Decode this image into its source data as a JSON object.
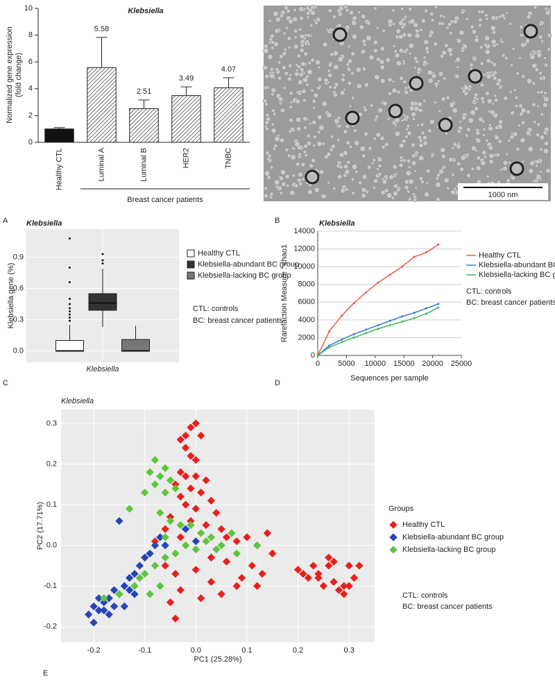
{
  "panel_labels": [
    "A",
    "B",
    "C",
    "D",
    "E"
  ],
  "image": {
    "scale_bar": "1000 nm"
  },
  "chart_data": [
    {
      "type": "bar",
      "title": "Klebsiella",
      "y_label": [
        "Normalized gene expression",
        "(fold change)"
      ],
      "categories": [
        "Healthy CTL",
        "Luminal A",
        "Luminal B",
        "HER2",
        "TNBC"
      ],
      "values": [
        1.0,
        5.58,
        2.51,
        3.49,
        4.07
      ],
      "errors": [
        0.1,
        2.25,
        0.65,
        0.65,
        0.75
      ],
      "value_labels": [
        null,
        "5.58",
        "2.51",
        "3.49",
        "4.07"
      ],
      "fills": [
        "solid",
        "hatch",
        "hatch",
        "hatch",
        "hatch"
      ],
      "color": "#111111",
      "ylim": [
        0,
        10
      ],
      "yticks": [
        0,
        2,
        4,
        6,
        8,
        10
      ],
      "group_label": "Breast cancer patients"
    },
    {
      "type": "box",
      "title": "Klebsiella",
      "y_label": "Klebsiella gene (%)",
      "categories": [
        "Klebsiella"
      ],
      "ylim": [
        -0.11,
        1.17
      ],
      "yticks": [
        {
          "value": 0,
          "label": "0.0"
        },
        0.3,
        0.6,
        0.9
      ],
      "grid": true,
      "series": [
        {
          "name": "Healthy CTL",
          "color": "#ffffff",
          "min": 0,
          "q1": 0,
          "median": 0,
          "q3": 0.1,
          "max": 0.25,
          "outliers": [
            0.29,
            0.32,
            0.35,
            0.38,
            0.41,
            0.45,
            0.5,
            0.66,
            0.8,
            1.08
          ]
        },
        {
          "name": "Klebsiella-abundant BC group",
          "color": "#333333",
          "min": 0.23,
          "q1": 0.39,
          "median": 0.46,
          "q3": 0.55,
          "max": 0.79,
          "outliers": [
            0.84,
            0.87,
            0.93
          ]
        },
        {
          "name": "Klebsiella-lacking BC group",
          "color": "#777777",
          "min": 0,
          "q1": 0,
          "median": 0,
          "q3": 0.11,
          "max": 0.24,
          "outliers": []
        }
      ],
      "notes": [
        "CTL: controls",
        "BC: breast cancer patients"
      ]
    },
    {
      "type": "line",
      "title": "Klebsiella",
      "y_label": "Rarefaction Measure : chao1",
      "x_label": "Sequences per sample",
      "x": [
        0,
        2000,
        4200,
        6300,
        8400,
        10500,
        12600,
        14700,
        16800,
        18900,
        21000
      ],
      "xlim": [
        0,
        25000
      ],
      "xticks": [
        0,
        5000,
        10000,
        15000,
        20000,
        25000
      ],
      "ylim": [
        0,
        14000
      ],
      "yticks": [
        0,
        2000,
        4000,
        6000,
        8000,
        10000,
        12000,
        14000
      ],
      "grid": true,
      "series": [
        {
          "name": "Healthy CTL",
          "color": "#ee5a40",
          "values": [
            0,
            2700,
            4500,
            5900,
            7100,
            8200,
            9100,
            10000,
            11100,
            11600,
            12500
          ]
        },
        {
          "name": "Klebsiella-abundant BC group",
          "color": "#3b7bd6",
          "values": [
            0,
            1100,
            1800,
            2400,
            2900,
            3400,
            3900,
            4400,
            4800,
            5300,
            5800
          ]
        },
        {
          "name": "Klebsiella-lacking BC group",
          "color": "#3fb85a",
          "values": [
            0,
            900,
            1500,
            2000,
            2500,
            3000,
            3400,
            3800,
            4200,
            4700,
            5400
          ]
        }
      ],
      "notes": [
        "CTL: controls",
        "BC: breast cancer patients"
      ]
    },
    {
      "type": "scatter",
      "title": "Klebsiella",
      "x_label": "PC1 (25.28%)",
      "y_label": "PC2 (17.71%)",
      "legend_title": "Groups",
      "xlim": [
        -0.264,
        0.35
      ],
      "xticks": [
        -0.2,
        -0.1,
        {
          "value": 0,
          "label": "0.0"
        },
        0.1,
        0.2,
        0.3
      ],
      "ylim": [
        -0.238,
        0.334
      ],
      "yticks": [
        -0.2,
        -0.1,
        {
          "value": 0,
          "label": "0.0"
        },
        0.1,
        0.2,
        0.3
      ],
      "grid": true,
      "series": [
        {
          "name": "Healthy CTL",
          "color": "#e8201c",
          "x": [
            0.0,
            -0.01,
            -0.02,
            -0.03,
            0.01,
            -0.02,
            -0.01,
            0.0,
            -0.03,
            -0.02,
            0.0,
            0.02,
            -0.04,
            -0.01,
            0.01,
            -0.03,
            0.03,
            -0.02,
            0.0,
            0.04,
            -0.05,
            -0.01,
            0.02,
            0.05,
            -0.06,
            -0.03,
            0.06,
            -0.08,
            0.08,
            0.1,
            0.12,
            0.14,
            0.15,
            0.11,
            0.13,
            0.09,
            -0.1,
            -0.06,
            -0.04,
            0.0,
            0.03,
            -0.03,
            0.01,
            -0.05,
            -0.04,
            0.05,
            0.08,
            0.12,
            0.03,
            0.06,
            0.2,
            0.22,
            0.24,
            0.26,
            0.27,
            0.28,
            0.3,
            0.32,
            0.31,
            0.29,
            0.27,
            0.25,
            0.23,
            0.21,
            0.3,
            0.29,
            0.26,
            0.24
          ],
          "y": [
            0.3,
            0.29,
            0.27,
            0.26,
            0.27,
            0.24,
            0.22,
            0.21,
            0.18,
            0.17,
            0.17,
            0.16,
            0.15,
            0.14,
            0.13,
            0.12,
            0.11,
            0.1,
            0.09,
            0.08,
            0.07,
            0.06,
            0.05,
            0.04,
            0.04,
            0.02,
            0.02,
            0.01,
            0.01,
            0.02,
            0.0,
            0.03,
            -0.02,
            -0.05,
            -0.07,
            -0.08,
            -0.03,
            -0.05,
            -0.07,
            -0.06,
            -0.09,
            -0.11,
            -0.13,
            -0.14,
            -0.18,
            -0.12,
            -0.1,
            -0.1,
            -0.03,
            -0.04,
            -0.06,
            -0.08,
            -0.07,
            -0.05,
            -0.09,
            -0.11,
            -0.05,
            -0.05,
            -0.08,
            -0.1,
            -0.04,
            -0.1,
            -0.05,
            -0.07,
            -0.1,
            -0.12,
            -0.03,
            -0.08
          ]
        },
        {
          "name": "Klebsiella-abundant BC group",
          "color": "#2545b8",
          "x": [
            -0.2,
            -0.21,
            -0.2,
            -0.19,
            -0.18,
            -0.17,
            -0.19,
            -0.16,
            -0.18,
            -0.15,
            -0.14,
            -0.16,
            -0.13,
            -0.12,
            -0.11,
            -0.13,
            -0.1,
            -0.09,
            -0.08,
            -0.07,
            -0.06,
            -0.15,
            -0.12,
            -0.14,
            -0.17,
            -0.02,
            0.0
          ],
          "y": [
            -0.19,
            -0.17,
            -0.15,
            -0.16,
            -0.14,
            -0.13,
            -0.13,
            -0.15,
            -0.16,
            -0.12,
            -0.1,
            -0.11,
            -0.08,
            -0.07,
            -0.05,
            -0.11,
            -0.03,
            -0.02,
            0.0,
            0.02,
            0.0,
            0.06,
            -0.12,
            -0.15,
            -0.17,
            0.04,
            0.01
          ]
        },
        {
          "name": "Klebsiella-lacking BC group",
          "color": "#5cc63c",
          "x": [
            -0.08,
            -0.09,
            -0.07,
            -0.06,
            -0.05,
            -0.08,
            -0.1,
            -0.06,
            -0.04,
            -0.13,
            -0.07,
            -0.05,
            -0.03,
            -0.01,
            0.01,
            0.02,
            -0.02,
            0.0,
            0.03,
            0.05,
            -0.04,
            -0.06,
            -0.08,
            -0.1,
            -0.12,
            -0.11,
            -0.07,
            -0.15,
            -0.18,
            0.04,
            0.07,
            0.08,
            -0.09,
            0.12,
            -0.06
          ],
          "y": [
            0.21,
            0.18,
            0.17,
            0.19,
            0.16,
            0.15,
            0.13,
            0.13,
            0.14,
            0.09,
            0.08,
            0.06,
            0.05,
            0.05,
            0.03,
            0.01,
            0.0,
            -0.01,
            0.02,
            0.0,
            -0.02,
            -0.03,
            -0.05,
            -0.07,
            -0.1,
            -0.08,
            -0.1,
            -0.12,
            -0.13,
            -0.01,
            0.03,
            -0.02,
            -0.12,
            0.0,
            0.02
          ]
        }
      ],
      "notes": [
        "CTL: controls",
        "BC: breast cancer patients"
      ]
    }
  ]
}
